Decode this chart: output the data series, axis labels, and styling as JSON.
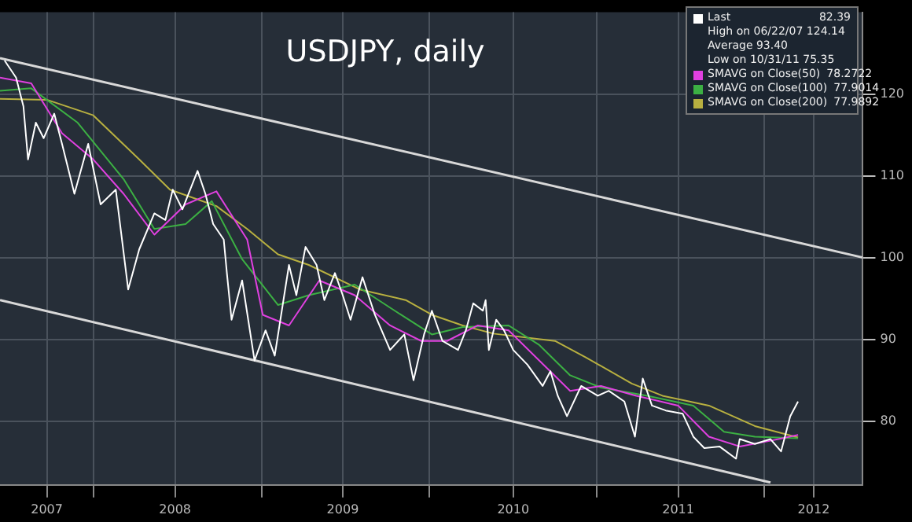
{
  "chart_data": {
    "type": "line",
    "title": "USDJPY, daily",
    "xlim": [
      "2007-06-12",
      "2012-08-02"
    ],
    "ylim": [
      72.2,
      130
    ],
    "xticks": [
      {
        "value": "2007-09-22",
        "label": "2007"
      },
      {
        "value": "2008-01-01",
        "label": null
      },
      {
        "value": "2008-06-27",
        "label": "2008"
      },
      {
        "value": "2009-01-01",
        "label": null
      },
      {
        "value": "2009-06-27",
        "label": "2009"
      },
      {
        "value": "2010-01-01",
        "label": null
      },
      {
        "value": "2010-07-03",
        "label": "2010"
      },
      {
        "value": "2011-01-01",
        "label": null
      },
      {
        "value": "2011-06-27",
        "label": "2011"
      },
      {
        "value": "2012-01-01",
        "label": null
      },
      {
        "value": "2012-04-17",
        "label": "2012"
      }
    ],
    "yticks": [
      80,
      90,
      100,
      110,
      120
    ],
    "grid": true,
    "legend": "top right",
    "marker": "none",
    "annotations": [
      "High on 06/22/07 124.14",
      "Average 93.40",
      "Low on 10/31/11 75.35",
      "82.39",
      "78.2722",
      "77.9014",
      "77.9892"
    ],
    "series": [
      {
        "name": "Last",
        "color": "#ffffff",
        "x": [
          "2007-06-22",
          "2007-07-17",
          "2007-08-02",
          "2007-08-12",
          "2007-08-29",
          "2007-09-15",
          "2007-10-08",
          "2007-10-25",
          "2007-11-21",
          "2007-12-21",
          "2008-01-17",
          "2008-02-19",
          "2008-03-17",
          "2008-04-10",
          "2008-05-13",
          "2008-06-06",
          "2008-06-22",
          "2008-07-13",
          "2008-08-15",
          "2008-09-01",
          "2008-09-18",
          "2008-10-11",
          "2008-10-18",
          "2008-10-28",
          "2008-11-20",
          "2008-12-17",
          "2009-01-10",
          "2009-01-30",
          "2009-03-02",
          "2009-03-18",
          "2009-04-07",
          "2009-05-01",
          "2009-05-18",
          "2009-06-10",
          "2009-06-27",
          "2009-07-14",
          "2009-08-09",
          "2009-09-05",
          "2009-10-08",
          "2009-11-08",
          "2009-11-28",
          "2009-12-21",
          "2010-01-07",
          "2010-01-30",
          "2010-03-05",
          "2010-03-22",
          "2010-04-07",
          "2010-04-28",
          "2010-05-04",
          "2010-05-11",
          "2010-05-27",
          "2010-06-13",
          "2010-07-03",
          "2010-08-03",
          "2010-09-05",
          "2010-09-22",
          "2010-10-08",
          "2010-10-28",
          "2010-11-28",
          "2011-01-03",
          "2011-01-27",
          "2011-03-02",
          "2011-03-25",
          "2011-04-11",
          "2011-05-01",
          "2011-05-31",
          "2011-07-07",
          "2011-07-30",
          "2011-08-23",
          "2011-09-25",
          "2011-10-31",
          "2011-11-08",
          "2011-12-11",
          "2012-01-14",
          "2012-02-06",
          "2012-02-26",
          "2012-03-14"
        ],
        "values": [
          124.1,
          122.0,
          118.5,
          112.0,
          116.5,
          114.6,
          117.6,
          113.9,
          107.8,
          113.9,
          106.5,
          108.3,
          96.1,
          101.0,
          105.4,
          104.6,
          108.3,
          105.9,
          110.6,
          107.8,
          104.1,
          102.2,
          98.0,
          92.4,
          97.2,
          87.4,
          91.1,
          88.0,
          99.1,
          95.4,
          101.3,
          99.1,
          94.8,
          98.1,
          95.4,
          92.4,
          97.6,
          93.0,
          88.7,
          90.6,
          85.0,
          90.6,
          93.5,
          89.8,
          88.7,
          91.1,
          94.4,
          93.5,
          94.8,
          88.7,
          92.4,
          91.1,
          88.7,
          86.9,
          84.3,
          86.1,
          83.1,
          80.6,
          84.3,
          83.1,
          83.7,
          82.4,
          78.1,
          85.2,
          81.9,
          81.3,
          80.9,
          78.1,
          76.7,
          76.9,
          75.4,
          77.8,
          77.2,
          77.8,
          76.3,
          80.6,
          82.4
        ]
      },
      {
        "name": "SMAVG on Close(50)",
        "color": "#e040e0",
        "x": [
          "2007-06-12",
          "2007-08-19",
          "2007-10-25",
          "2008-01-01",
          "2008-03-07",
          "2008-05-13",
          "2008-07-20",
          "2008-09-25",
          "2008-12-01",
          "2009-01-04",
          "2009-03-02",
          "2009-05-07",
          "2009-07-23",
          "2009-10-08",
          "2009-12-15",
          "2010-02-09",
          "2010-04-17",
          "2010-06-23",
          "2010-08-29",
          "2010-11-04",
          "2011-01-10",
          "2011-03-28",
          "2011-06-27",
          "2011-09-02",
          "2011-11-08",
          "2012-01-14",
          "2012-03-14"
        ],
        "values": [
          122.0,
          121.3,
          115.2,
          112.0,
          107.8,
          102.8,
          106.5,
          108.1,
          102.2,
          93.0,
          91.7,
          97.2,
          95.4,
          91.7,
          89.8,
          89.8,
          91.7,
          91.1,
          87.4,
          83.7,
          84.3,
          83.1,
          81.9,
          78.1,
          76.9,
          77.6,
          78.3
        ]
      },
      {
        "name": "SMAVG on Close(100)",
        "color": "#3cb043",
        "x": [
          "2007-06-12",
          "2007-08-19",
          "2007-11-28",
          "2008-03-07",
          "2008-05-13",
          "2008-07-20",
          "2008-09-15",
          "2008-11-20",
          "2009-02-06",
          "2009-04-14",
          "2009-07-23",
          "2009-11-01",
          "2010-01-07",
          "2010-03-15",
          "2010-06-23",
          "2010-08-29",
          "2010-11-04",
          "2011-01-10",
          "2011-04-21",
          "2011-07-30",
          "2011-10-05",
          "2011-12-11",
          "2012-03-14"
        ],
        "values": [
          120.4,
          120.7,
          116.5,
          109.6,
          103.5,
          104.1,
          106.9,
          99.8,
          94.2,
          95.4,
          96.7,
          93.0,
          90.6,
          91.5,
          91.7,
          89.3,
          85.6,
          84.1,
          83.1,
          81.9,
          78.7,
          78.1,
          77.9
        ]
      },
      {
        "name": "SMAVG on Close(200)",
        "color": "#b8b040",
        "x": [
          "2007-06-12",
          "2007-09-22",
          "2008-01-01",
          "2008-04-10",
          "2008-06-16",
          "2008-09-25",
          "2008-12-01",
          "2009-02-06",
          "2009-04-14",
          "2009-08-03",
          "2009-11-11",
          "2010-01-07",
          "2010-03-15",
          "2010-05-21",
          "2010-10-02",
          "2010-12-08",
          "2011-03-18",
          "2011-05-24",
          "2011-09-02",
          "2011-12-11",
          "2012-03-14"
        ],
        "values": [
          119.4,
          119.3,
          117.4,
          112.0,
          108.3,
          106.3,
          103.5,
          100.4,
          99.1,
          96.1,
          94.8,
          93.0,
          91.7,
          90.7,
          89.8,
          87.8,
          84.6,
          83.1,
          81.9,
          79.4,
          78.0
        ]
      },
      {
        "type": "line",
        "color": "#d8d8d8",
        "x": [
          "2007-06-12",
          "2012-08-02"
        ],
        "values": [
          124.4,
          100.0
        ]
      },
      {
        "type": "line",
        "color": "#d8d8d8",
        "x": [
          "2007-06-12",
          "2012-01-14"
        ],
        "values": [
          94.8,
          72.5
        ]
      }
    ]
  }
}
